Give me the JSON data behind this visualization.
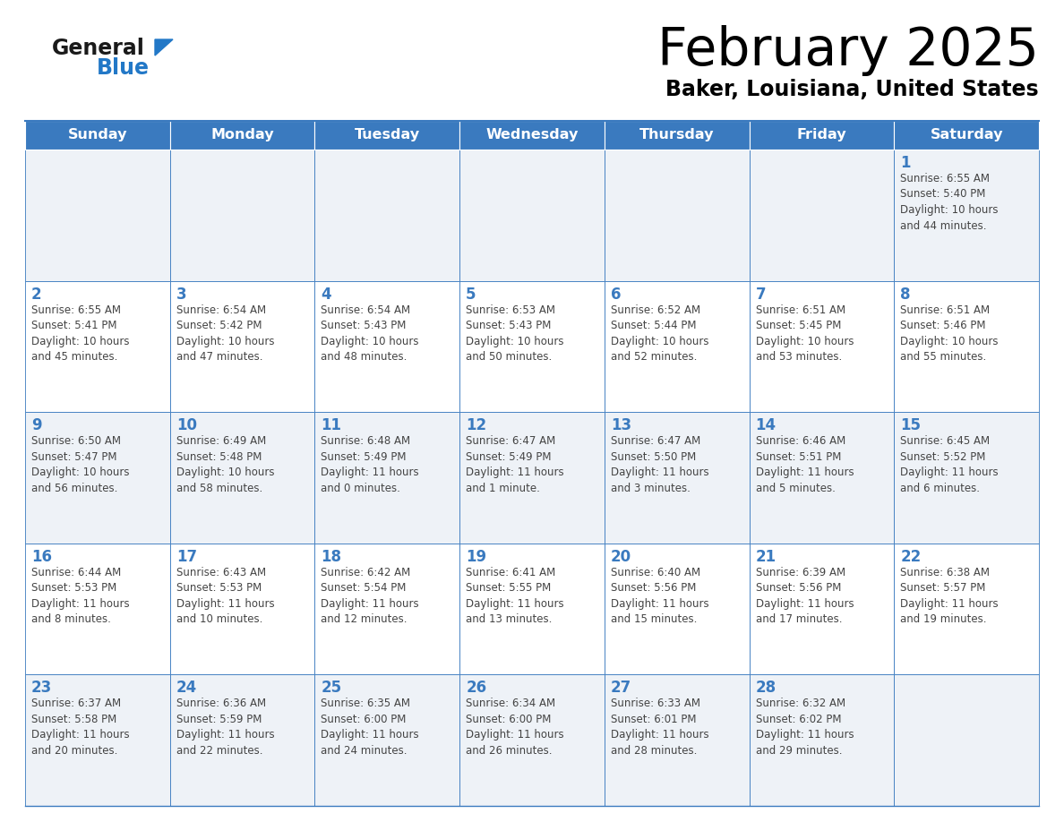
{
  "title": "February 2025",
  "subtitle": "Baker, Louisiana, United States",
  "days_of_week": [
    "Sunday",
    "Monday",
    "Tuesday",
    "Wednesday",
    "Thursday",
    "Friday",
    "Saturday"
  ],
  "header_bg": "#3a7abf",
  "header_text": "#ffffff",
  "row_bg_light": "#eef2f7",
  "row_bg_white": "#ffffff",
  "border_color": "#3a7abf",
  "day_num_color": "#3a7abf",
  "info_color": "#444444",
  "title_color": "#000000",
  "subtitle_color": "#000000",
  "logo_general_color": "#1a1a1a",
  "logo_blue_color": "#2278c7",
  "calendar_data": [
    [
      null,
      null,
      null,
      null,
      null,
      null,
      {
        "day": "1",
        "sunrise": "6:55 AM",
        "sunset": "5:40 PM",
        "daylight": "10 hours\nand 44 minutes."
      }
    ],
    [
      {
        "day": "2",
        "sunrise": "6:55 AM",
        "sunset": "5:41 PM",
        "daylight": "10 hours\nand 45 minutes."
      },
      {
        "day": "3",
        "sunrise": "6:54 AM",
        "sunset": "5:42 PM",
        "daylight": "10 hours\nand 47 minutes."
      },
      {
        "day": "4",
        "sunrise": "6:54 AM",
        "sunset": "5:43 PM",
        "daylight": "10 hours\nand 48 minutes."
      },
      {
        "day": "5",
        "sunrise": "6:53 AM",
        "sunset": "5:43 PM",
        "daylight": "10 hours\nand 50 minutes."
      },
      {
        "day": "6",
        "sunrise": "6:52 AM",
        "sunset": "5:44 PM",
        "daylight": "10 hours\nand 52 minutes."
      },
      {
        "day": "7",
        "sunrise": "6:51 AM",
        "sunset": "5:45 PM",
        "daylight": "10 hours\nand 53 minutes."
      },
      {
        "day": "8",
        "sunrise": "6:51 AM",
        "sunset": "5:46 PM",
        "daylight": "10 hours\nand 55 minutes."
      }
    ],
    [
      {
        "day": "9",
        "sunrise": "6:50 AM",
        "sunset": "5:47 PM",
        "daylight": "10 hours\nand 56 minutes."
      },
      {
        "day": "10",
        "sunrise": "6:49 AM",
        "sunset": "5:48 PM",
        "daylight": "10 hours\nand 58 minutes."
      },
      {
        "day": "11",
        "sunrise": "6:48 AM",
        "sunset": "5:49 PM",
        "daylight": "11 hours\nand 0 minutes."
      },
      {
        "day": "12",
        "sunrise": "6:47 AM",
        "sunset": "5:49 PM",
        "daylight": "11 hours\nand 1 minute."
      },
      {
        "day": "13",
        "sunrise": "6:47 AM",
        "sunset": "5:50 PM",
        "daylight": "11 hours\nand 3 minutes."
      },
      {
        "day": "14",
        "sunrise": "6:46 AM",
        "sunset": "5:51 PM",
        "daylight": "11 hours\nand 5 minutes."
      },
      {
        "day": "15",
        "sunrise": "6:45 AM",
        "sunset": "5:52 PM",
        "daylight": "11 hours\nand 6 minutes."
      }
    ],
    [
      {
        "day": "16",
        "sunrise": "6:44 AM",
        "sunset": "5:53 PM",
        "daylight": "11 hours\nand 8 minutes."
      },
      {
        "day": "17",
        "sunrise": "6:43 AM",
        "sunset": "5:53 PM",
        "daylight": "11 hours\nand 10 minutes."
      },
      {
        "day": "18",
        "sunrise": "6:42 AM",
        "sunset": "5:54 PM",
        "daylight": "11 hours\nand 12 minutes."
      },
      {
        "day": "19",
        "sunrise": "6:41 AM",
        "sunset": "5:55 PM",
        "daylight": "11 hours\nand 13 minutes."
      },
      {
        "day": "20",
        "sunrise": "6:40 AM",
        "sunset": "5:56 PM",
        "daylight": "11 hours\nand 15 minutes."
      },
      {
        "day": "21",
        "sunrise": "6:39 AM",
        "sunset": "5:56 PM",
        "daylight": "11 hours\nand 17 minutes."
      },
      {
        "day": "22",
        "sunrise": "6:38 AM",
        "sunset": "5:57 PM",
        "daylight": "11 hours\nand 19 minutes."
      }
    ],
    [
      {
        "day": "23",
        "sunrise": "6:37 AM",
        "sunset": "5:58 PM",
        "daylight": "11 hours\nand 20 minutes."
      },
      {
        "day": "24",
        "sunrise": "6:36 AM",
        "sunset": "5:59 PM",
        "daylight": "11 hours\nand 22 minutes."
      },
      {
        "day": "25",
        "sunrise": "6:35 AM",
        "sunset": "6:00 PM",
        "daylight": "11 hours\nand 24 minutes."
      },
      {
        "day": "26",
        "sunrise": "6:34 AM",
        "sunset": "6:00 PM",
        "daylight": "11 hours\nand 26 minutes."
      },
      {
        "day": "27",
        "sunrise": "6:33 AM",
        "sunset": "6:01 PM",
        "daylight": "11 hours\nand 28 minutes."
      },
      {
        "day": "28",
        "sunrise": "6:32 AM",
        "sunset": "6:02 PM",
        "daylight": "11 hours\nand 29 minutes."
      },
      null
    ]
  ]
}
